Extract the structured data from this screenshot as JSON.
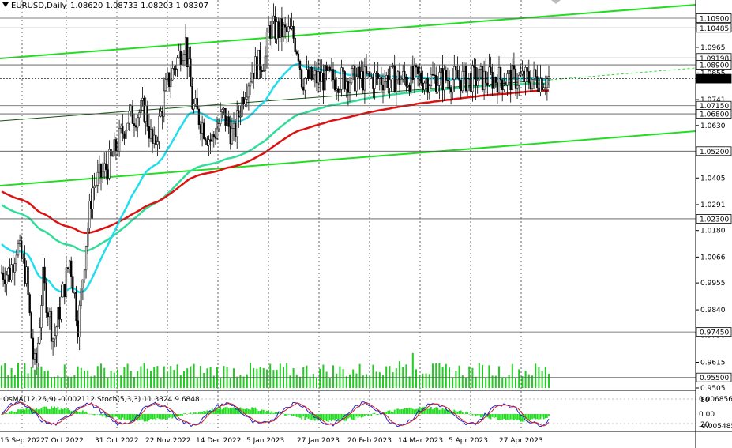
{
  "header": {
    "symbol": "EURUSD,Daily",
    "ohlc": "1.08620 1.08733 1.08203 1.08307"
  },
  "indicator_header": "OsMA(12,26,9) -0.002112 Stoch(5,3,3) 11.3324 9.6848",
  "colors": {
    "background": "#ffffff",
    "channel": "#22dd22",
    "ema50": "#22ddee",
    "ema144": "#33dd99",
    "ema200": "#dd1111",
    "candles": "#000000",
    "volume": "#22cc22",
    "osma": "#22dd22",
    "stoch_main": "#2222cc",
    "stoch_signal": "#cc2222",
    "grid": "#000000"
  },
  "chart_data": {
    "type": "candlestick",
    "instrument": "EURUSD",
    "timeframe": "Daily",
    "ylim": [
      0.9505,
      1.1135
    ],
    "y_ticks": [
      "1.1090",
      "1.0965",
      "1.0855",
      "1.0741",
      "1.0630",
      "1.0520",
      "1.0405",
      "1.0291",
      "1.0180",
      "1.0066",
      "0.9955",
      "0.9840",
      "0.9730",
      "0.9615",
      "0.9505"
    ],
    "price_labels": [
      {
        "value": "1.10900",
        "boxed": true
      },
      {
        "value": "1.10485",
        "boxed": true
      },
      {
        "value": "1.09198",
        "boxed": true
      },
      {
        "value": "1.08900",
        "boxed": true
      },
      {
        "value": "1.08307",
        "boxed": true,
        "current": true
      },
      {
        "value": "1.07150",
        "boxed": true
      },
      {
        "value": "1.06800",
        "boxed": true
      },
      {
        "value": "1.05200",
        "boxed": true
      },
      {
        "value": "1.02300",
        "boxed": true
      },
      {
        "value": "0.97450",
        "boxed": true
      },
      {
        "value": "0.95500",
        "boxed": true
      }
    ],
    "x_labels": [
      "15 Sep 2022",
      "7 Oct 2022",
      "31 Oct 2022",
      "22 Nov 2022",
      "14 Dec 2022",
      "5 Jan 2023",
      "27 Jan 2023",
      "20 Feb 2023",
      "14 Mar 2023",
      "5 Apr 2023",
      "27 Apr 2023"
    ],
    "approx_close_path": [
      [
        "2022-09-06",
        1.0
      ],
      [
        "2022-09-12",
        1.012
      ],
      [
        "2022-09-20",
        0.998
      ],
      [
        "2022-09-26",
        0.962
      ],
      [
        "2022-09-28",
        0.958
      ],
      [
        "2022-10-04",
        0.997
      ],
      [
        "2022-10-13",
        0.971
      ],
      [
        "2022-10-27",
        1.006
      ],
      [
        "2022-11-03",
        0.977
      ],
      [
        "2022-11-10",
        1.015
      ],
      [
        "2022-11-15",
        1.036
      ],
      [
        "2022-12-01",
        1.048
      ],
      [
        "2022-12-15",
        1.066
      ],
      [
        "2022-12-30",
        1.07
      ],
      [
        "2023-01-06",
        1.052
      ],
      [
        "2023-01-17",
        1.08
      ],
      [
        "2023-01-26",
        1.091
      ],
      [
        "2023-02-02",
        1.1
      ],
      [
        "2023-02-08",
        1.072
      ],
      [
        "2023-02-24",
        1.056
      ],
      [
        "2023-03-06",
        1.068
      ],
      [
        "2023-03-15",
        1.058
      ],
      [
        "2023-03-24",
        1.078
      ],
      [
        "2023-03-31",
        1.087
      ],
      [
        "2023-04-11",
        1.092
      ],
      [
        "2023-04-14",
        1.105
      ],
      [
        "2023-04-26",
        1.103
      ],
      [
        "2023-05-04",
        1.102
      ],
      [
        "2023-05-09",
        1.095
      ],
      [
        "2023-05-12",
        1.083
      ]
    ],
    "moving_averages": [
      {
        "name": "EMA50",
        "color": "#22ddee"
      },
      {
        "name": "EMA144",
        "color": "#33dd99"
      },
      {
        "name": "EMA200",
        "color": "#dd1111"
      }
    ],
    "channel_lines": 3,
    "subwindow": {
      "indicators": [
        "OsMA(12,26,9)",
        "Stoch(5,3,3)"
      ],
      "values": {
        "osma": "-0.002112",
        "stoch_main": "11.3324",
        "stoch_signal": "9.6848"
      },
      "y_ticks": [
        "0.0068567",
        "0.00",
        "-0.005485"
      ],
      "levels": [
        "80",
        "20"
      ]
    }
  }
}
